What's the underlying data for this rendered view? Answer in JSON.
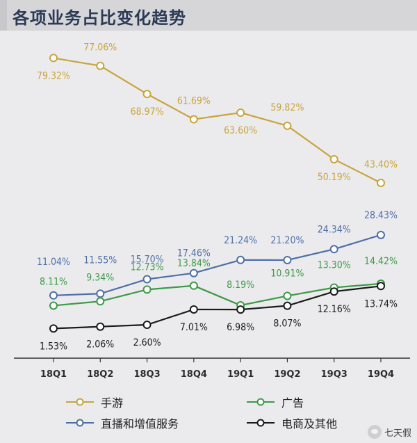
{
  "title": "各项业务占比变化趋势",
  "chart_data": {
    "type": "line",
    "title": "各项业务占比变化趋势",
    "categories": [
      "18Q1",
      "18Q2",
      "18Q3",
      "18Q4",
      "19Q1",
      "19Q2",
      "19Q3",
      "19Q4"
    ],
    "ylim": [
      0,
      90
    ],
    "grid": false,
    "legend_position": "bottom",
    "series": [
      {
        "name": "手游",
        "color": "#c9a43c",
        "values": [
          79.32,
          77.06,
          68.97,
          61.69,
          63.6,
          59.82,
          50.19,
          43.4
        ],
        "labels": [
          "79.32%",
          "77.06%",
          "68.97%",
          "61.69%",
          "63.60%",
          "59.82%",
          "50.19%",
          "43.40%"
        ]
      },
      {
        "name": "直播和增值服务",
        "color": "#4e6fa6",
        "values": [
          11.04,
          11.55,
          15.7,
          17.46,
          21.24,
          21.2,
          24.34,
          28.43
        ],
        "labels": [
          "11.04%",
          "11.55%",
          "15.70%",
          "17.46%",
          "21.24%",
          "21.20%",
          "24.34%",
          "28.43%"
        ]
      },
      {
        "name": "广告",
        "color": "#3c9a47",
        "values": [
          8.11,
          9.34,
          12.73,
          13.84,
          8.19,
          10.91,
          13.3,
          14.42
        ],
        "labels": [
          "8.11%",
          "9.34%",
          "12.73%",
          "13.84%",
          "8.19%",
          "10.91%",
          "13.30%",
          "14.42%"
        ]
      },
      {
        "name": "电商及其他",
        "color": "#1a1a1a",
        "values": [
          1.53,
          2.06,
          2.6,
          7.01,
          6.98,
          8.07,
          12.16,
          13.74
        ],
        "labels": [
          "1.53%",
          "2.06%",
          "2.60%",
          "7.01%",
          "6.98%",
          "8.07%",
          "12.16%",
          "13.74%"
        ]
      }
    ]
  },
  "legend": {
    "items": [
      "手游",
      "广告",
      "直播和增值服务",
      "电商及其他"
    ]
  },
  "footer": {
    "wechat_label": "七天假"
  }
}
